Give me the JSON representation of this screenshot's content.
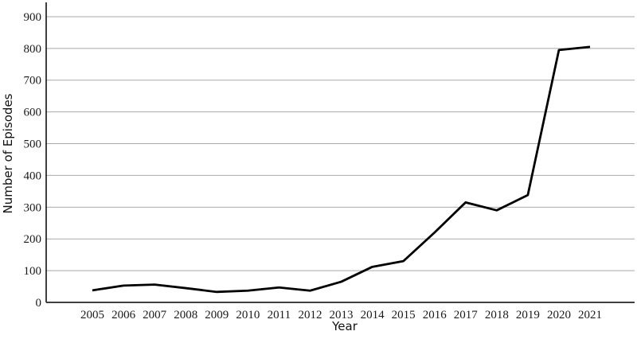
{
  "figure": {
    "background": "#ffffff",
    "line_color": "#000000",
    "grid_color": "#a9a9a9",
    "bottom_axis_color": "#404040",
    "left_spine_color": "#000000"
  },
  "chart_data": {
    "type": "line",
    "title": "",
    "xlabel": "Year",
    "ylabel": "Number of Episodes",
    "categories": [
      "2005",
      "2006",
      "2007",
      "2008",
      "2009",
      "2010",
      "2011",
      "2012",
      "2013",
      "2014",
      "2015",
      "2016",
      "2017",
      "2018",
      "2019",
      "2020",
      "2021"
    ],
    "series": [
      {
        "name": "Number of Episodes",
        "values": [
          38,
          53,
          56,
          45,
          33,
          37,
          47,
          37,
          65,
          112,
          130,
          220,
          315,
          290,
          338,
          795,
          805
        ]
      }
    ],
    "yticks": [
      0,
      100,
      200,
      300,
      400,
      500,
      600,
      700,
      800,
      900
    ],
    "ylim": [
      0,
      945
    ],
    "grid": "horizontal-only",
    "legend": "none"
  }
}
